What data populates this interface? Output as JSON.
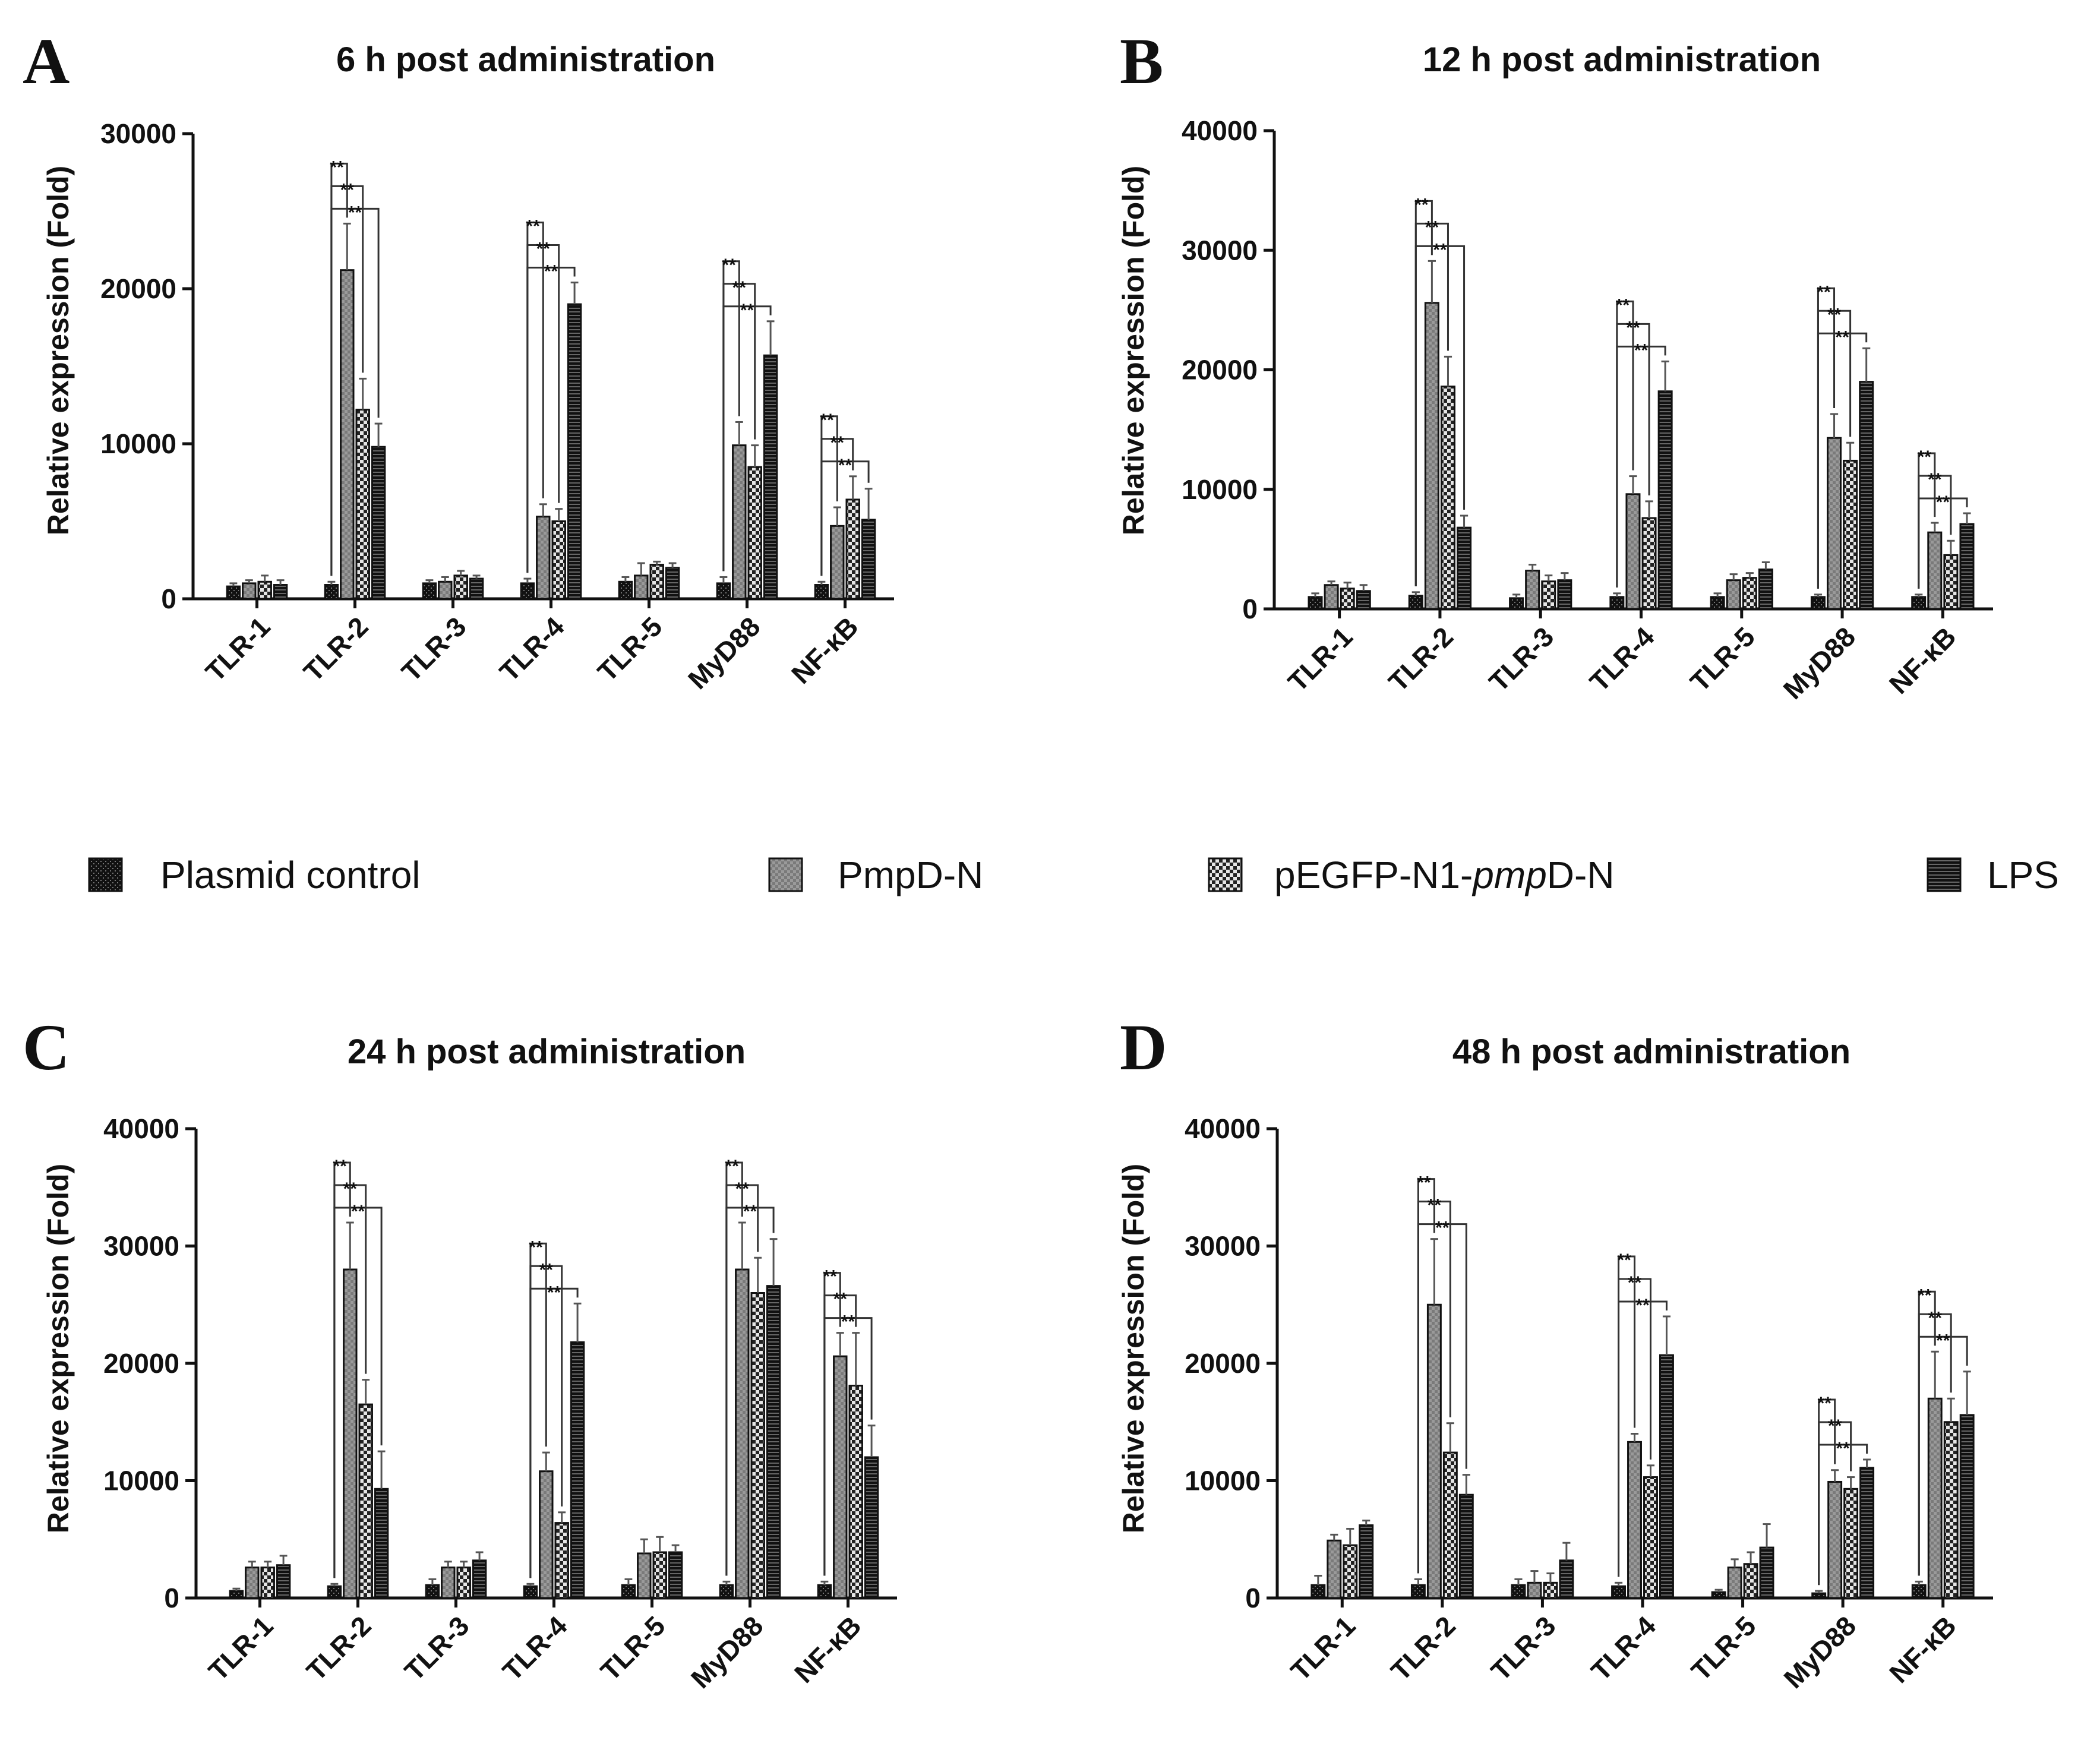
{
  "legend": {
    "items": [
      {
        "label": "Plasmid control",
        "pattern": "pat-plasmid"
      },
      {
        "label": "PmpD-N",
        "pattern": "pat-pmpd"
      },
      {
        "label": "pEGFP-N1-",
        "italic": "pmp",
        "suffix": "D-N",
        "pattern": "pat-pegfp"
      },
      {
        "label": "LPS",
        "pattern": "pat-lps"
      }
    ]
  },
  "chart_data": [
    {
      "panel": "A",
      "type": "bar",
      "title": "6 h post administration",
      "xlabel": "",
      "ylabel": "Relative expression (Fold)",
      "ylim": [
        0,
        30000
      ],
      "yticks": [
        0,
        10000,
        20000,
        30000
      ],
      "categories": [
        "TLR-1",
        "TLR-2",
        "TLR-3",
        "TLR-4",
        "TLR-5",
        "MyD88",
        "NF-κB"
      ],
      "series": [
        {
          "name": "Plasmid control",
          "values": [
            800,
            900,
            1000,
            1000,
            1100,
            1000,
            900
          ],
          "errors": [
            200,
            200,
            200,
            300,
            300,
            400,
            200
          ]
        },
        {
          "name": "PmpD-N",
          "values": [
            1000,
            21200,
            1100,
            5300,
            1500,
            9900,
            4700
          ],
          "errors": [
            200,
            3000,
            300,
            800,
            800,
            1500,
            1200
          ]
        },
        {
          "name": "pEGFP-N1-pmpD-N",
          "values": [
            1100,
            12200,
            1500,
            5000,
            2200,
            8500,
            6400
          ],
          "errors": [
            400,
            2000,
            300,
            800,
            200,
            1400,
            1500
          ]
        },
        {
          "name": "LPS",
          "values": [
            900,
            9800,
            1300,
            19000,
            2000,
            15700,
            5100
          ],
          "errors": [
            300,
            1500,
            200,
            1400,
            300,
            2200,
            2000
          ]
        }
      ],
      "significance": [
        {
          "category": 1,
          "pairs": [
            [
              0,
              1,
              "**"
            ],
            [
              0,
              2,
              "**"
            ],
            [
              0,
              3,
              "**"
            ]
          ]
        },
        {
          "category": 3,
          "pairs": [
            [
              0,
              1,
              "**"
            ],
            [
              0,
              2,
              "**"
            ],
            [
              0,
              3,
              "**"
            ]
          ]
        },
        {
          "category": 5,
          "pairs": [
            [
              0,
              1,
              "**"
            ],
            [
              0,
              2,
              "**"
            ],
            [
              0,
              3,
              "**"
            ]
          ]
        },
        {
          "category": 6,
          "pairs": [
            [
              0,
              1,
              "**"
            ],
            [
              0,
              2,
              "**"
            ],
            [
              0,
              3,
              "**"
            ]
          ]
        }
      ]
    },
    {
      "panel": "B",
      "type": "bar",
      "title": "12 h post administration",
      "xlabel": "",
      "ylabel": "Relative expression (Fold)",
      "ylim": [
        0,
        40000
      ],
      "yticks": [
        0,
        10000,
        20000,
        30000,
        40000
      ],
      "categories": [
        "TLR-1",
        "TLR-2",
        "TLR-3",
        "TLR-4",
        "TLR-5",
        "MyD88",
        "NF-κB"
      ],
      "series": [
        {
          "name": "Plasmid control",
          "values": [
            1000,
            1100,
            900,
            1000,
            1000,
            1000,
            1000
          ],
          "errors": [
            300,
            300,
            300,
            300,
            300,
            200,
            200
          ]
        },
        {
          "name": "PmpD-N",
          "values": [
            2000,
            25600,
            3200,
            9600,
            2400,
            14300,
            6400
          ],
          "errors": [
            300,
            3500,
            500,
            1500,
            500,
            2000,
            800
          ]
        },
        {
          "name": "pEGFP-N1-pmpD-N",
          "values": [
            1700,
            18600,
            2300,
            7600,
            2600,
            12400,
            4500
          ],
          "errors": [
            500,
            2500,
            500,
            1400,
            400,
            1500,
            1200
          ]
        },
        {
          "name": "LPS",
          "values": [
            1500,
            6800,
            2400,
            18200,
            3300,
            19000,
            7100
          ],
          "errors": [
            500,
            1000,
            600,
            2500,
            600,
            2800,
            900
          ]
        }
      ],
      "significance": [
        {
          "category": 1,
          "pairs": [
            [
              0,
              1,
              "**"
            ],
            [
              0,
              2,
              "**"
            ],
            [
              0,
              3,
              "**"
            ]
          ]
        },
        {
          "category": 3,
          "pairs": [
            [
              0,
              1,
              "**"
            ],
            [
              0,
              2,
              "**"
            ],
            [
              0,
              3,
              "**"
            ]
          ]
        },
        {
          "category": 5,
          "pairs": [
            [
              0,
              1,
              "**"
            ],
            [
              0,
              2,
              "**"
            ],
            [
              0,
              3,
              "**"
            ]
          ]
        },
        {
          "category": 6,
          "pairs": [
            [
              0,
              1,
              "**"
            ],
            [
              0,
              2,
              "**"
            ],
            [
              0,
              3,
              "**"
            ]
          ]
        }
      ]
    },
    {
      "panel": "C",
      "type": "bar",
      "title": "24 h post administration",
      "xlabel": "",
      "ylabel": "Relative expression (Fold)",
      "ylim": [
        0,
        40000
      ],
      "yticks": [
        0,
        10000,
        20000,
        30000,
        40000
      ],
      "categories": [
        "TLR-1",
        "TLR-2",
        "TLR-3",
        "TLR-4",
        "TLR-5",
        "MyD88",
        "NF-κB"
      ],
      "series": [
        {
          "name": "Plasmid control",
          "values": [
            600,
            1000,
            1100,
            1000,
            1100,
            1100,
            1100
          ],
          "errors": [
            200,
            200,
            500,
            200,
            500,
            300,
            300
          ]
        },
        {
          "name": "PmpD-N",
          "values": [
            2600,
            28000,
            2600,
            10800,
            3800,
            28000,
            20600
          ],
          "errors": [
            500,
            4000,
            500,
            1600,
            1200,
            4000,
            2000
          ]
        },
        {
          "name": "pEGFP-N1-pmpD-N",
          "values": [
            2600,
            16500,
            2600,
            6400,
            3900,
            26000,
            18100
          ],
          "errors": [
            500,
            2100,
            500,
            900,
            1300,
            3000,
            4500
          ]
        },
        {
          "name": "LPS",
          "values": [
            2800,
            9300,
            3200,
            21800,
            3900,
            26600,
            12000
          ],
          "errors": [
            800,
            3200,
            700,
            3300,
            600,
            4000,
            2700
          ]
        }
      ],
      "significance": [
        {
          "category": 1,
          "pairs": [
            [
              0,
              1,
              "**"
            ],
            [
              0,
              2,
              "**"
            ],
            [
              0,
              3,
              "**"
            ]
          ]
        },
        {
          "category": 3,
          "pairs": [
            [
              0,
              1,
              "**"
            ],
            [
              0,
              2,
              "**"
            ],
            [
              0,
              3,
              "**"
            ]
          ]
        },
        {
          "category": 5,
          "pairs": [
            [
              0,
              1,
              "**"
            ],
            [
              0,
              2,
              "**"
            ],
            [
              0,
              3,
              "**"
            ]
          ]
        },
        {
          "category": 6,
          "pairs": [
            [
              0,
              1,
              "**"
            ],
            [
              0,
              2,
              "**"
            ],
            [
              0,
              3,
              "**"
            ]
          ]
        }
      ]
    },
    {
      "panel": "D",
      "type": "bar",
      "title": "48 h post administration",
      "xlabel": "",
      "ylabel": "Relative expression (Fold)",
      "ylim": [
        0,
        40000
      ],
      "yticks": [
        0,
        10000,
        20000,
        30000,
        40000
      ],
      "categories": [
        "TLR-1",
        "TLR-2",
        "TLR-3",
        "TLR-4",
        "TLR-5",
        "MyD88",
        "NF-κB"
      ],
      "series": [
        {
          "name": "Plasmid control",
          "values": [
            1100,
            1100,
            1100,
            1000,
            500,
            400,
            1100
          ],
          "errors": [
            800,
            500,
            500,
            300,
            200,
            200,
            300
          ]
        },
        {
          "name": "PmpD-N",
          "values": [
            4900,
            25000,
            1300,
            13300,
            2600,
            9900,
            17000
          ],
          "errors": [
            500,
            5600,
            1000,
            700,
            700,
            1000,
            4000
          ]
        },
        {
          "name": "pEGFP-N1-pmpD-N",
          "values": [
            4500,
            12400,
            1300,
            10300,
            2900,
            9300,
            15000
          ],
          "errors": [
            1400,
            2500,
            800,
            1000,
            1000,
            1000,
            2000
          ]
        },
        {
          "name": "LPS",
          "values": [
            6200,
            8800,
            3200,
            20700,
            4300,
            11100,
            15600
          ],
          "errors": [
            400,
            1700,
            1500,
            3300,
            2000,
            700,
            3700
          ]
        }
      ],
      "significance": [
        {
          "category": 1,
          "pairs": [
            [
              0,
              1,
              "**"
            ],
            [
              0,
              2,
              "**"
            ],
            [
              0,
              3,
              "**"
            ]
          ]
        },
        {
          "category": 3,
          "pairs": [
            [
              0,
              1,
              "**"
            ],
            [
              0,
              2,
              "**"
            ],
            [
              0,
              3,
              "**"
            ]
          ]
        },
        {
          "category": 5,
          "pairs": [
            [
              0,
              1,
              "**"
            ],
            [
              0,
              2,
              "**"
            ],
            [
              0,
              3,
              "**"
            ]
          ]
        },
        {
          "category": 6,
          "pairs": [
            [
              0,
              1,
              "**"
            ],
            [
              0,
              2,
              "**"
            ],
            [
              0,
              3,
              "**"
            ]
          ]
        }
      ]
    }
  ]
}
